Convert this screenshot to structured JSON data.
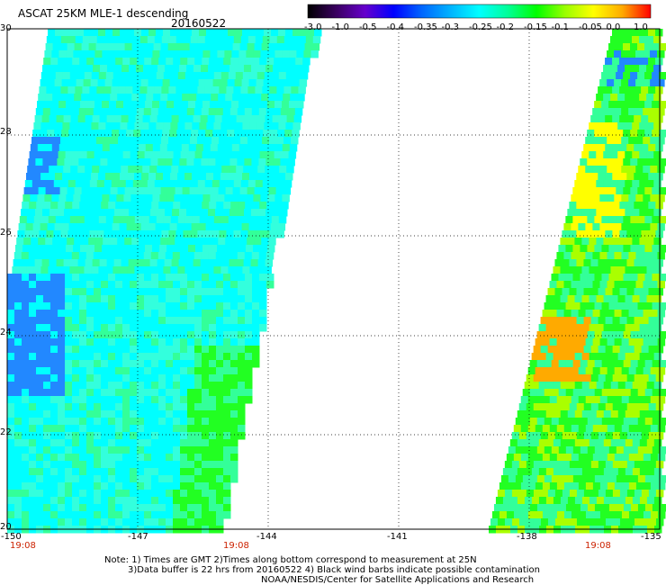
{
  "header": {
    "title": "ASCAT 25KM MLE-1 descending",
    "date": "20160522"
  },
  "colorbar": {
    "labels": [
      "-3.0",
      "-1.0",
      "-0.5",
      "-0.4",
      "-0.35",
      "-0.3",
      "-0.25",
      "-0.2",
      "-0.15",
      "-0.1",
      "-0.05",
      "0.0",
      "1.0"
    ],
    "colors": [
      "#000000",
      "#3a0060",
      "#6600cc",
      "#0000ff",
      "#0066ff",
      "#00b4ff",
      "#00ffff",
      "#00ff99",
      "#00ff00",
      "#99ff00",
      "#ffff00",
      "#ffaa00",
      "#ff0000"
    ]
  },
  "map": {
    "lat_labels": [
      "30",
      "28",
      "26",
      "24",
      "22",
      "20"
    ],
    "lon_labels": [
      "-150",
      "-147",
      "-144",
      "-141",
      "-138",
      "-135"
    ],
    "time_labels": [
      "19:08",
      "19:08",
      "19:08"
    ],
    "colors": {
      "cyan": "#00ffff",
      "light_cyan": "#33ffdd",
      "green_cyan": "#33ff99",
      "green": "#22ff22",
      "lime": "#aaff00",
      "yellow": "#ffff00",
      "orange": "#ffaa00",
      "blue": "#2288ff",
      "deep_blue": "#0022ff"
    }
  },
  "notes": {
    "line1": "Note: 1) Times are GMT 2)Times along bottom correspond to measurement at 25N",
    "line2": "3)Data buffer is 22 hrs from 20160522 4) Black wind barbs indicate possible contamination",
    "line3": "NOAA/NESDIS/Center for Satellite Applications and Research"
  }
}
